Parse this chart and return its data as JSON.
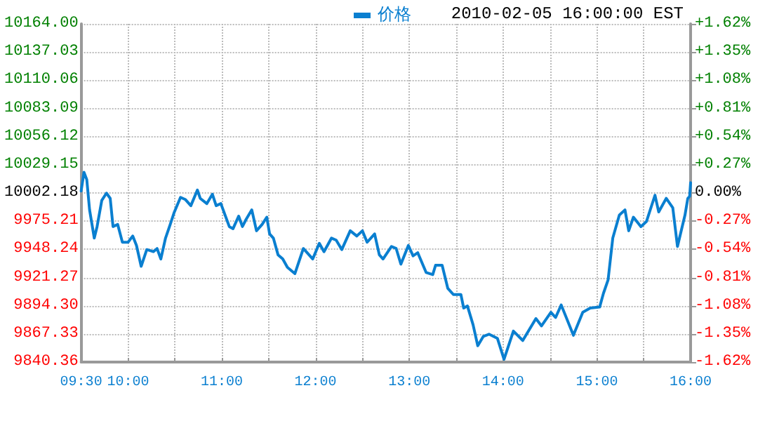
{
  "chart_data": {
    "type": "line",
    "annotations": [
      "2010-02-05 16:00:00 EST"
    ],
    "x": [
      9.5,
      9.53,
      9.56,
      9.59,
      9.64,
      9.67,
      9.72,
      9.77,
      9.81,
      9.84,
      9.89,
      9.94,
      10.0,
      10.05,
      10.09,
      10.14,
      10.2,
      10.27,
      10.31,
      10.35,
      10.4,
      10.45,
      10.49,
      10.56,
      10.61,
      10.67,
      10.74,
      10.77,
      10.84,
      10.9,
      10.94,
      10.99,
      11.08,
      11.12,
      11.18,
      11.22,
      11.26,
      11.32,
      11.37,
      11.43,
      11.48,
      11.51,
      11.55,
      11.6,
      11.65,
      11.7,
      11.78,
      11.87,
      11.97,
      12.04,
      12.09,
      12.17,
      12.22,
      12.28,
      12.37,
      12.44,
      12.5,
      12.55,
      12.63,
      12.68,
      12.72,
      12.81,
      12.86,
      12.91,
      12.99,
      13.04,
      13.09,
      13.18,
      13.25,
      13.28,
      13.35,
      13.41,
      13.47,
      13.55,
      13.58,
      13.62,
      13.68,
      13.73,
      13.79,
      13.85,
      13.94,
      14.01,
      14.11,
      14.21,
      14.35,
      14.41,
      14.51,
      14.56,
      14.62,
      14.75,
      14.85,
      14.93,
      15.03,
      15.07,
      15.12,
      15.17,
      15.24,
      15.3,
      15.34,
      15.39,
      15.47,
      15.53,
      15.62,
      15.66,
      15.74,
      15.81,
      15.86,
      15.94,
      15.97,
      15.99,
      16.0
    ],
    "series": [
      {
        "name": "价格",
        "color": "#0a7fd0",
        "values": [
          10004,
          10022,
          10015,
          9986,
          9959,
          9970,
          9995,
          10002,
          9997,
          9970,
          9972,
          9955,
          9955,
          9961,
          9952,
          9932,
          9948,
          9946,
          9949,
          9939,
          9959,
          9972,
          9983,
          9998,
          9996,
          9990,
          10005,
          9997,
          9992,
          10001,
          9990,
          9992,
          9970,
          9968,
          9980,
          9970,
          9977,
          9986,
          9966,
          9972,
          9979,
          9963,
          9959,
          9943,
          9939,
          9931,
          9925,
          9949,
          9939,
          9954,
          9946,
          9959,
          9957,
          9948,
          9966,
          9961,
          9966,
          9955,
          9963,
          9943,
          9939,
          9951,
          9949,
          9934,
          9952,
          9942,
          9945,
          9926,
          9924,
          9933,
          9933,
          9911,
          9905,
          9905,
          9892,
          9894,
          9876,
          9856,
          9865,
          9867,
          9863,
          9843,
          9870,
          9861,
          9882,
          9875,
          9888,
          9883,
          9895,
          9866,
          9888,
          9892,
          9893,
          9906,
          9919,
          9959,
          9981,
          9986,
          9966,
          9979,
          9970,
          9975,
          10000,
          9984,
          9997,
          9988,
          9951,
          9981,
          9997,
          9999,
          10012
        ]
      }
    ],
    "xlim": [
      9.5,
      16
    ],
    "xticks": [
      {
        "value": 9.5,
        "label": "09:30"
      },
      {
        "value": 10,
        "label": "10:00"
      },
      {
        "value": 10.5,
        "label": null
      },
      {
        "value": 11,
        "label": "11:00"
      },
      {
        "value": 11.5,
        "label": null
      },
      {
        "value": 12,
        "label": "12:00"
      },
      {
        "value": 12.5,
        "label": null
      },
      {
        "value": 13,
        "label": "13:00"
      },
      {
        "value": 13.5,
        "label": null
      },
      {
        "value": 14,
        "label": "14:00"
      },
      {
        "value": 14.5,
        "label": null
      },
      {
        "value": 15,
        "label": "15:00"
      },
      {
        "value": 15.5,
        "label": null
      },
      {
        "value": 16,
        "label": "16:00"
      }
    ],
    "ylim": [
      9840.36,
      10164
    ],
    "yticks": [
      {
        "value": 9840.36,
        "label": "9840.36"
      },
      {
        "value": 9867.33,
        "label": "9867.33"
      },
      {
        "value": 9894.3,
        "label": "9894.30"
      },
      {
        "value": 9921.27,
        "label": "9921.27"
      },
      {
        "value": 9948.24,
        "label": "9948.24"
      },
      {
        "value": 9975.21,
        "label": "9975.21"
      },
      {
        "value": 10002.18,
        "label": "10002.18"
      },
      {
        "value": 10029.15,
        "label": "10029.15"
      },
      {
        "value": 10056.12,
        "label": "10056.12"
      },
      {
        "value": 10083.09,
        "label": "10083.09"
      },
      {
        "value": 10110.06,
        "label": "10110.06"
      },
      {
        "value": 10137.03,
        "label": "10137.03"
      },
      {
        "value": 10164,
        "label": "10164.00"
      }
    ],
    "y2lim": [
      -1.62,
      1.62
    ],
    "y2ticks": [
      {
        "value": -1.62,
        "label": "-1.62%"
      },
      {
        "value": -1.35,
        "label": "-1.35%"
      },
      {
        "value": -1.08,
        "label": "-1.08%"
      },
      {
        "value": -0.81,
        "label": "-0.81%"
      },
      {
        "value": -0.54,
        "label": "-0.54%"
      },
      {
        "value": -0.27,
        "label": "-0.27%"
      },
      {
        "value": 0,
        "label": "0.00%"
      },
      {
        "value": 0.27,
        "label": "+0.27%"
      },
      {
        "value": 0.54,
        "label": "+0.54%"
      },
      {
        "value": 0.81,
        "label": "+0.81%"
      },
      {
        "value": 1.08,
        "label": "+1.08%"
      },
      {
        "value": 1.35,
        "label": "+1.35%"
      },
      {
        "value": 1.62,
        "label": "+1.62%"
      }
    ],
    "grid": true,
    "legend": "top",
    "marker": "none",
    "line_style": "solid"
  }
}
